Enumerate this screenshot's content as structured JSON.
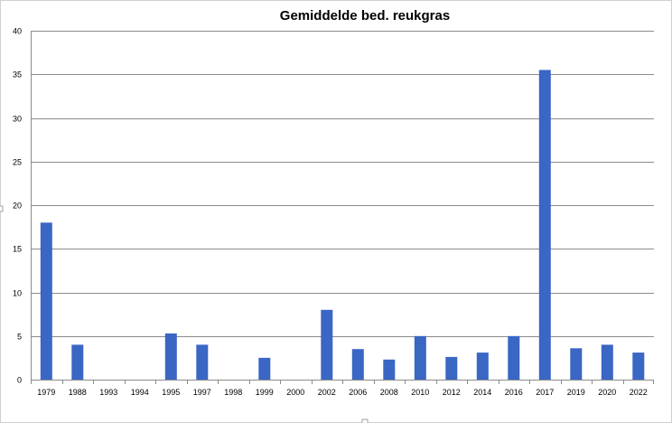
{
  "chart_data": {
    "type": "bar",
    "title": "Gemiddelde bed. reukgras",
    "xlabel": "",
    "ylabel": "",
    "categories": [
      "1979",
      "1988",
      "1993",
      "1994",
      "1995",
      "1997",
      "1998",
      "1999",
      "2000",
      "2002",
      "2006",
      "2008",
      "2010",
      "2012",
      "2014",
      "2016",
      "2017",
      "2019",
      "2020",
      "2022"
    ],
    "values": [
      18,
      4,
      0,
      0,
      5.3,
      4,
      0,
      2.5,
      0,
      8,
      3.5,
      2.3,
      5,
      2.6,
      3.1,
      5,
      35.5,
      3.6,
      4,
      3.1
    ],
    "ylim": [
      0,
      40
    ],
    "yticks": [
      0,
      5,
      10,
      15,
      20,
      25,
      30,
      35,
      40
    ],
    "grid": true,
    "legend": "none",
    "bar_color": "#3a66c4"
  }
}
